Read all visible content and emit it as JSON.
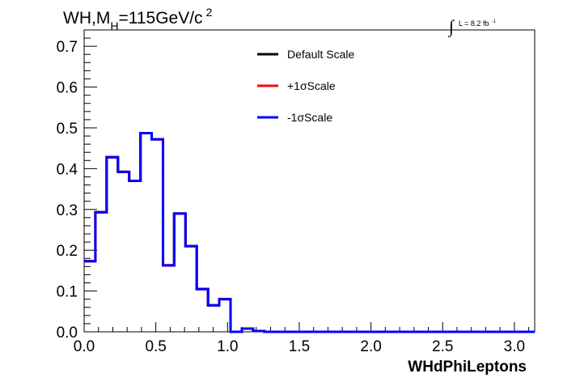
{
  "chart_data": {
    "type": "line",
    "title": {
      "pre": "WH,M",
      "sub": "H",
      "mid": "=115GeV/c",
      "sup": "2"
    },
    "lumi": {
      "integral_symbol": "∫",
      "text": "L = 8.2 fb",
      "sup": "-1"
    },
    "xlabel": "WHdPhiLeptons",
    "ylabel": "",
    "xlim": [
      0,
      3.1416
    ],
    "ylim": [
      0,
      0.74
    ],
    "x_ticks": [
      0.0,
      0.5,
      1.0,
      1.5,
      2.0,
      2.5,
      3.0
    ],
    "x_tick_labels": [
      "0.0",
      "0.5",
      "1.0",
      "1.5",
      "2.0",
      "2.5",
      "3.0"
    ],
    "y_ticks": [
      0.0,
      0.1,
      0.2,
      0.3,
      0.4,
      0.5,
      0.6,
      0.7
    ],
    "y_tick_labels": [
      "0.0",
      "0.1",
      "0.2",
      "0.3",
      "0.4",
      "0.5",
      "0.6",
      "0.7"
    ],
    "grid": false,
    "legend_placement": "top-center",
    "bin_edges": [
      0.0,
      0.0785,
      0.157,
      0.236,
      0.314,
      0.393,
      0.471,
      0.55,
      0.628,
      0.707,
      0.785,
      0.864,
      0.942,
      1.021,
      1.1,
      1.178,
      1.257,
      1.335,
      1.414,
      1.492,
      1.571,
      1.649,
      1.728,
      1.806,
      1.885,
      1.963,
      2.042,
      2.121,
      2.199,
      2.278,
      2.356,
      2.435,
      2.513,
      2.592,
      2.67,
      2.749,
      2.827,
      2.906,
      2.985,
      3.063,
      3.1416
    ],
    "series": [
      {
        "name": "Default Scale",
        "color": "#000000",
        "values": [
          0.173,
          0.293,
          0.428,
          0.392,
          0.37,
          0.487,
          0.472,
          0.163,
          0.29,
          0.21,
          0.105,
          0.065,
          0.08,
          0.0,
          0.008,
          0.002,
          0.0,
          0.0,
          0.0,
          0.0,
          0.0,
          0.0,
          0.0,
          0.0,
          0.0,
          0.0,
          0.0,
          0.0,
          0.0,
          0.0,
          0.0,
          0.0,
          0.0,
          0.0,
          0.0,
          0.0,
          0.0,
          0.0,
          0.0,
          0.0
        ]
      },
      {
        "name": "+1σScale",
        "color": "#ff0000",
        "values": [
          0.173,
          0.293,
          0.428,
          0.392,
          0.37,
          0.487,
          0.472,
          0.163,
          0.29,
          0.21,
          0.105,
          0.065,
          0.08,
          0.0,
          0.008,
          0.002,
          0.0,
          0.0,
          0.0,
          0.0,
          0.0,
          0.0,
          0.0,
          0.0,
          0.0,
          0.0,
          0.0,
          0.0,
          0.0,
          0.0,
          0.0,
          0.0,
          0.0,
          0.0,
          0.0,
          0.0,
          0.0,
          0.0,
          0.0,
          0.0
        ]
      },
      {
        "name": "-1σScale",
        "color": "#0000ff",
        "values": [
          0.173,
          0.293,
          0.428,
          0.392,
          0.37,
          0.487,
          0.472,
          0.163,
          0.29,
          0.21,
          0.105,
          0.065,
          0.08,
          0.0,
          0.008,
          0.002,
          0.0,
          0.0,
          0.0,
          0.0,
          0.0,
          0.0,
          0.0,
          0.0,
          0.0,
          0.0,
          0.0,
          0.0,
          0.0,
          0.0,
          0.0,
          0.0,
          0.0,
          0.0,
          0.0,
          0.0,
          0.0,
          0.0,
          0.0,
          0.0
        ]
      }
    ]
  }
}
